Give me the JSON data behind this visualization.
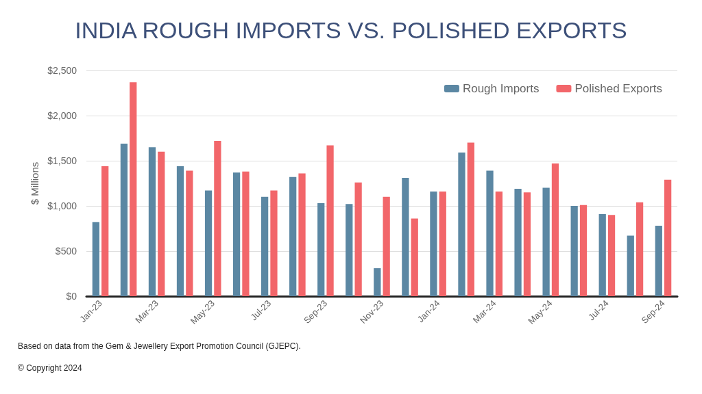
{
  "chart_data": {
    "type": "bar",
    "title": "INDIA ROUGH IMPORTS VS. POLISHED EXPORTS",
    "ylabel": "$ Millions",
    "categories": [
      "Jan-23",
      null,
      "Mar-23",
      null,
      "May-23",
      null,
      "Jul-23",
      null,
      "Sep-23",
      null,
      "Nov-23",
      null,
      "Jan-24",
      null,
      "Mar-24",
      null,
      "May-24",
      null,
      "Jul-24",
      null,
      "Sep-24"
    ],
    "series": [
      {
        "name": "Rough Imports",
        "color": "#5b87a3",
        "values": [
          820,
          1690,
          1650,
          1440,
          1170,
          1370,
          1100,
          1320,
          1030,
          1020,
          310,
          1310,
          1160,
          1590,
          1390,
          1190,
          1200,
          1000,
          910,
          670,
          780
        ]
      },
      {
        "name": "Polished Exports",
        "color": "#f2666a",
        "values": [
          1440,
          2370,
          1600,
          1390,
          1720,
          1380,
          1170,
          1360,
          1670,
          1260,
          1100,
          860,
          1160,
          1700,
          1160,
          1150,
          1470,
          1010,
          900,
          1040,
          1290
        ]
      }
    ],
    "ylim": [
      0,
      2500
    ],
    "yticks": [
      {
        "value": 0,
        "label": "$0"
      },
      {
        "value": 500,
        "label": "$500"
      },
      {
        "value": 1000,
        "label": "$1,000"
      },
      {
        "value": 1500,
        "label": "$1,500"
      },
      {
        "value": 2000,
        "label": "$2,000"
      },
      {
        "value": 2500,
        "label": "$2,500"
      }
    ],
    "grid": "y",
    "legend": "top right",
    "annotations": [
      "Based on data from the Gem & Jewellery Export Promotion Council (GJEPC).",
      "© Copyright 2024"
    ]
  }
}
